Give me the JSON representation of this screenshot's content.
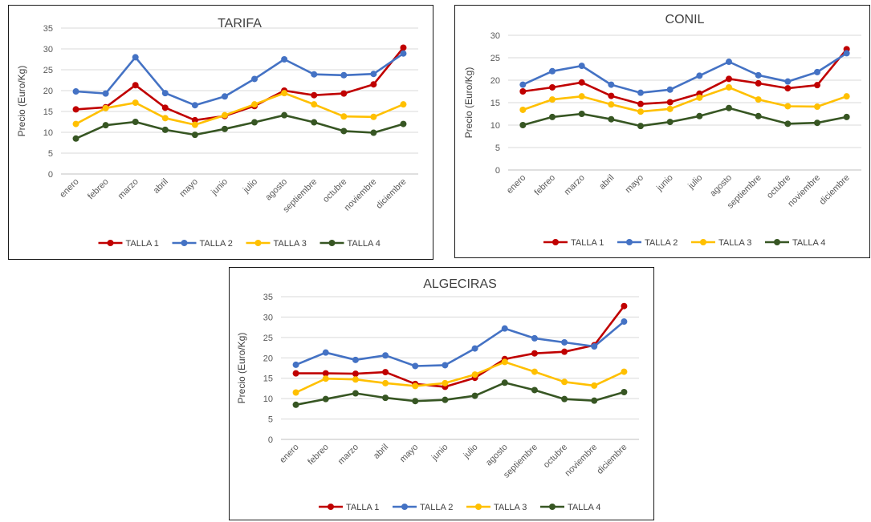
{
  "chart_data": [
    {
      "type": "line",
      "title": "TARIFA",
      "xlabel": "",
      "ylabel": "Precio (Euro/Kg)",
      "ylim": [
        0,
        35
      ],
      "yticks": [
        0,
        5,
        10,
        15,
        20,
        25,
        30,
        35
      ],
      "grid": true,
      "legend": "bottom",
      "categories": [
        "enero",
        "febreo",
        "marzo",
        "abril",
        "mayo",
        "junio",
        "julio",
        "agosto",
        "septiembre",
        "octubre",
        "noviembre",
        "diciembre"
      ],
      "series": [
        {
          "name": "TALLA 1",
          "color": "#C00000",
          "values": [
            15.5,
            16.0,
            21.3,
            15.9,
            12.9,
            13.9,
            16.3,
            20.0,
            18.9,
            19.3,
            21.5,
            30.3
          ]
        },
        {
          "name": "TALLA 2",
          "color": "#4472C4",
          "values": [
            19.8,
            19.3,
            28.0,
            19.4,
            16.5,
            18.6,
            22.8,
            27.5,
            23.9,
            23.7,
            24.0,
            28.9
          ]
        },
        {
          "name": "TALLA 3",
          "color": "#FFC000",
          "values": [
            12.0,
            15.8,
            17.1,
            13.4,
            11.8,
            14.1,
            16.7,
            19.4,
            16.7,
            13.8,
            13.7,
            16.7
          ]
        },
        {
          "name": "TALLA 4",
          "color": "#375623",
          "values": [
            8.5,
            11.7,
            12.5,
            10.6,
            9.4,
            10.8,
            12.4,
            14.1,
            12.4,
            10.3,
            9.9,
            12.0
          ]
        }
      ]
    },
    {
      "type": "line",
      "title": "CONIL",
      "xlabel": "",
      "ylabel": "Precio (Euro/Kg)",
      "ylim": [
        0,
        30
      ],
      "yticks": [
        0,
        5,
        10,
        15,
        20,
        25,
        30
      ],
      "grid": true,
      "legend": "bottom",
      "categories": [
        "enero",
        "febreo",
        "marzo",
        "abril",
        "mayo",
        "junio",
        "julio",
        "agosto",
        "septiembre",
        "octubre",
        "noviembre",
        "diciembre"
      ],
      "series": [
        {
          "name": "TALLA 1",
          "color": "#C00000",
          "values": [
            17.5,
            18.4,
            19.5,
            16.5,
            14.7,
            15.1,
            17.0,
            20.3,
            19.3,
            18.2,
            18.9,
            26.9
          ]
        },
        {
          "name": "TALLA 2",
          "color": "#4472C4",
          "values": [
            19.0,
            22.0,
            23.2,
            19.0,
            17.2,
            17.9,
            21.0,
            24.1,
            21.1,
            19.7,
            21.8,
            26.0
          ]
        },
        {
          "name": "TALLA 3",
          "color": "#FFC000",
          "values": [
            13.4,
            15.7,
            16.4,
            14.6,
            13.0,
            13.6,
            16.1,
            18.4,
            15.7,
            14.2,
            14.1,
            16.4
          ]
        },
        {
          "name": "TALLA 4",
          "color": "#375623",
          "values": [
            10.0,
            11.8,
            12.5,
            11.3,
            9.8,
            10.7,
            12.0,
            13.8,
            12.0,
            10.3,
            10.5,
            11.8
          ]
        }
      ]
    },
    {
      "type": "line",
      "title": "ALGECIRAS",
      "xlabel": "",
      "ylabel": "Precio (Euro/Kg)",
      "ylim": [
        0,
        35
      ],
      "yticks": [
        0,
        5,
        10,
        15,
        20,
        25,
        30,
        35
      ],
      "grid": true,
      "legend": "bottom",
      "categories": [
        "enero",
        "febreo",
        "marzo",
        "abril",
        "mayo",
        "junio",
        "julio",
        "agosto",
        "septiembre",
        "octubre",
        "noviembre",
        "diciembre"
      ],
      "series": [
        {
          "name": "TALLA 1",
          "color": "#C00000",
          "values": [
            16.2,
            16.2,
            16.1,
            16.5,
            13.6,
            12.9,
            15.1,
            19.7,
            21.1,
            21.5,
            23.1,
            32.7
          ]
        },
        {
          "name": "TALLA 2",
          "color": "#4472C4",
          "values": [
            18.3,
            21.3,
            19.5,
            20.6,
            18.0,
            18.2,
            22.3,
            27.2,
            24.8,
            23.8,
            22.8,
            28.9
          ]
        },
        {
          "name": "TALLA 3",
          "color": "#FFC000",
          "values": [
            11.5,
            14.9,
            14.7,
            13.8,
            13.1,
            13.8,
            15.9,
            19.0,
            16.6,
            14.1,
            13.2,
            16.6
          ]
        },
        {
          "name": "TALLA 4",
          "color": "#375623",
          "values": [
            8.5,
            9.9,
            11.3,
            10.2,
            9.4,
            9.7,
            10.7,
            13.9,
            12.1,
            9.9,
            9.5,
            11.6
          ]
        }
      ]
    }
  ]
}
